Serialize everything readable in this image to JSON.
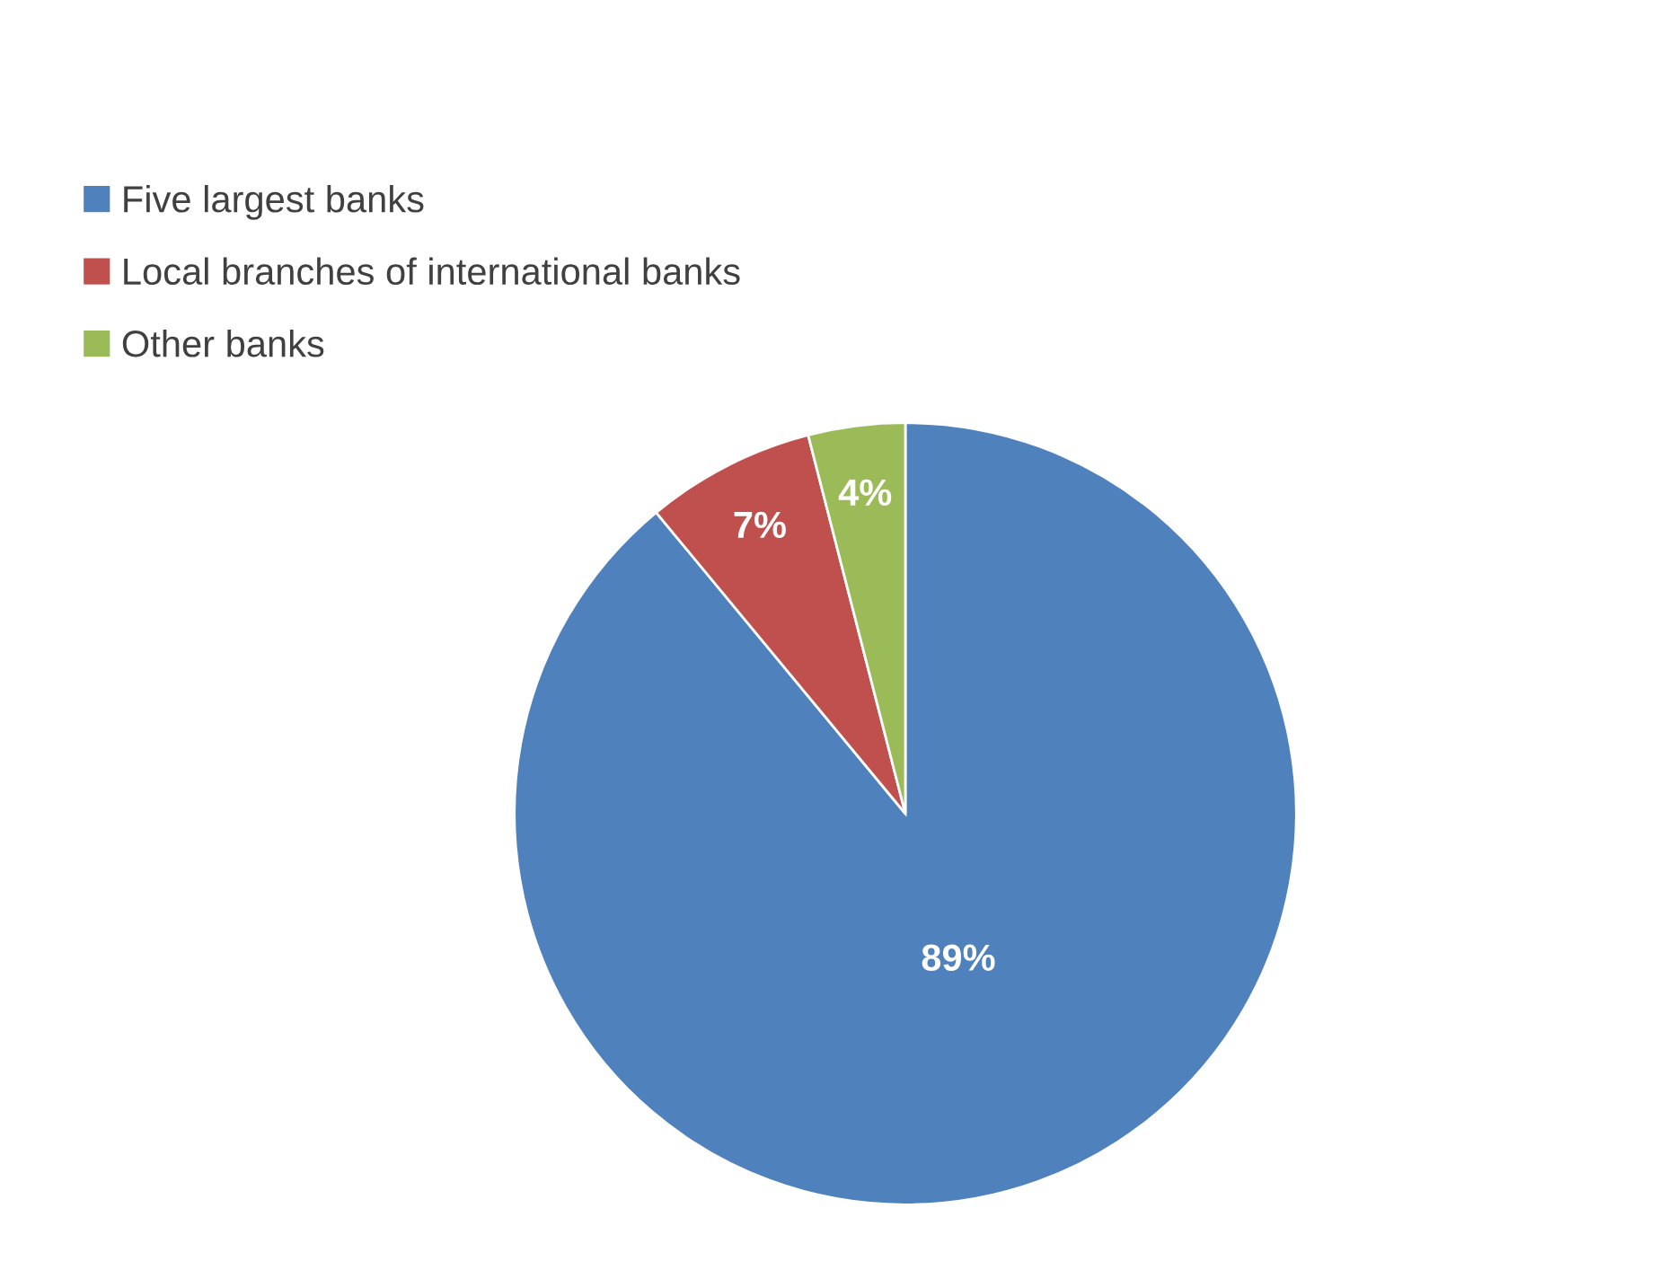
{
  "chart_data": {
    "type": "pie",
    "categories": [
      "Five largest banks",
      "Local branches of international banks",
      "Other banks"
    ],
    "values": [
      89,
      7,
      4
    ],
    "colors": [
      "#4f81bd",
      "#c0504d",
      "#9bbb59"
    ],
    "value_labels": [
      "89%",
      "7%",
      "4%"
    ],
    "legend": "top left"
  }
}
